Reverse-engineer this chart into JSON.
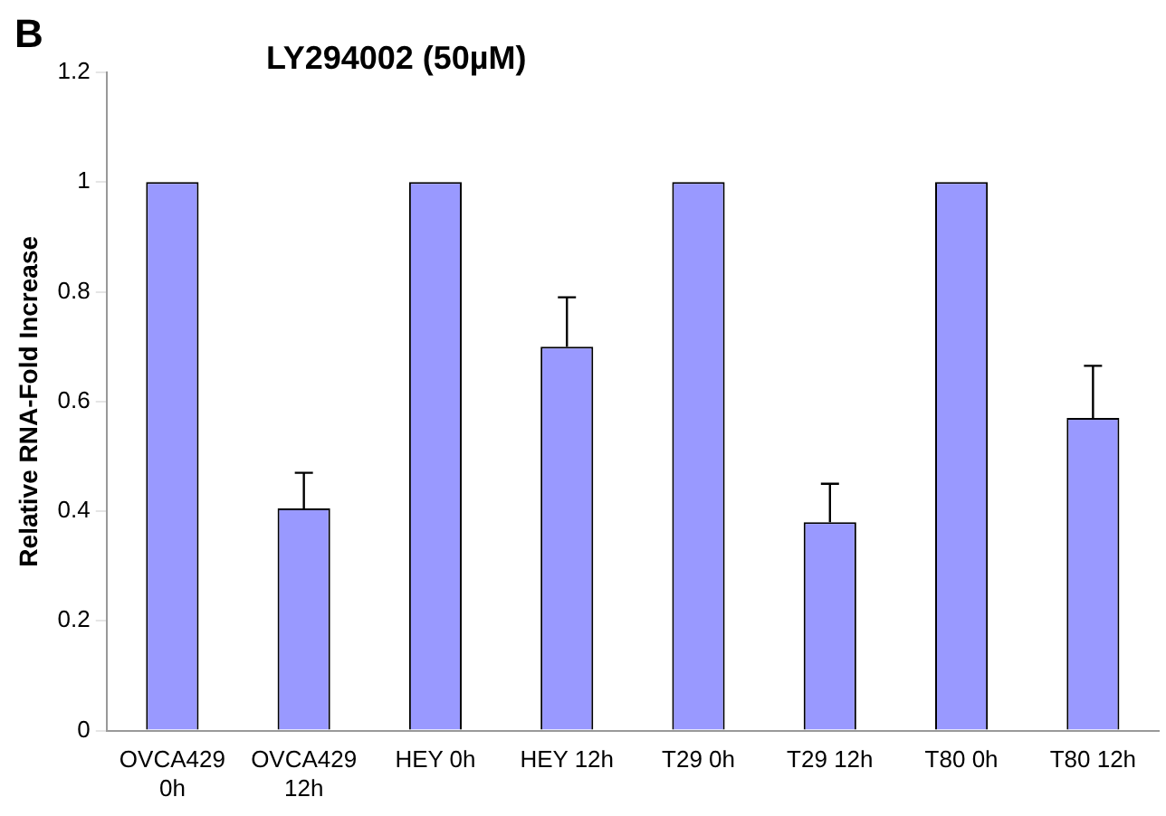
{
  "chart_data": {
    "type": "bar",
    "title": "LY294002 (50µM)",
    "ylabel": "Relative RNA-Fold Increase",
    "annotations": [
      "B"
    ],
    "categories": [
      "OVCA429 0h",
      "OVCA429 12h",
      "HEY 0h",
      "HEY 12h",
      "T29 0h",
      "T29 12h",
      "T80 0h",
      "T80 12h"
    ],
    "values": [
      1,
      0.405,
      1,
      0.7,
      1,
      0.38,
      1,
      0.57
    ],
    "errors": [
      null,
      [
        0.405,
        0.47
      ],
      null,
      [
        0.7,
        0.79
      ],
      null,
      [
        0.38,
        0.45
      ],
      null,
      [
        0.57,
        0.665
      ]
    ],
    "color": "#9999ff",
    "ylim": [
      0,
      1.2
    ],
    "yticks": [
      0,
      0.2,
      0.4,
      0.6,
      0.8,
      1,
      1.2
    ],
    "grid": false,
    "legend": false
  }
}
